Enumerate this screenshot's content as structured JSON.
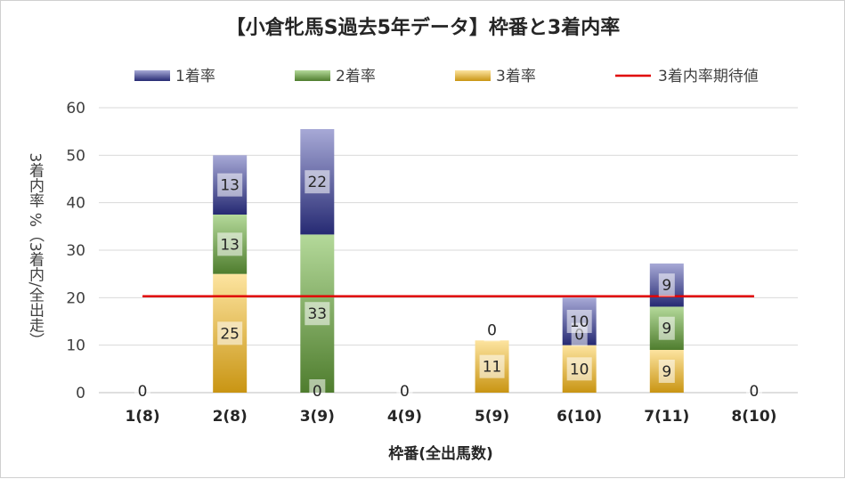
{
  "chart_data": {
    "type": "bar",
    "stacked": true,
    "title": "【小倉牝馬S過去5年データ】枠番と3着内率",
    "xlabel": "枠番(全出馬数)",
    "ylabel": "3着内率 %（3着内/全出走）",
    "ylim": [
      0,
      60
    ],
    "yticks": [
      0,
      10,
      20,
      30,
      40,
      50,
      60
    ],
    "grid": true,
    "legend_position": "top",
    "categories": [
      "1(8)",
      "2(8)",
      "3(9)",
      "4(9)",
      "5(9)",
      "6(10)",
      "7(11)",
      "8(10)"
    ],
    "series": [
      {
        "name": "3着率",
        "values": [
          0,
          25,
          0,
          0,
          11,
          10,
          9,
          0
        ],
        "color": "#d9a420"
      },
      {
        "name": "2着率",
        "values": [
          0,
          12.5,
          33.3,
          0,
          0,
          0,
          9.1,
          0
        ],
        "color": "#6e9e44"
      },
      {
        "name": "1着率",
        "values": [
          0,
          12.5,
          22.2,
          0,
          0,
          10,
          9.1,
          0
        ],
        "color": "#3a3f86"
      }
    ],
    "data_labels": [
      {
        "category": "1(8)",
        "series": "3着率",
        "text": "0"
      },
      {
        "category": "2(8)",
        "series": "3着率",
        "text": "25"
      },
      {
        "category": "2(8)",
        "series": "2着率",
        "text": "13"
      },
      {
        "category": "2(8)",
        "series": "1着率",
        "text": "13"
      },
      {
        "category": "3(9)",
        "series": "3着率",
        "text": "0"
      },
      {
        "category": "3(9)",
        "series": "2着率",
        "text": "33"
      },
      {
        "category": "3(9)",
        "series": "1着率",
        "text": "22"
      },
      {
        "category": "4(9)",
        "series": "3着率",
        "text": "0"
      },
      {
        "category": "5(9)",
        "series": "3着率",
        "text": "11"
      },
      {
        "category": "5(9)",
        "series": "2着率",
        "text": "0"
      },
      {
        "category": "6(10)",
        "series": "3着率",
        "text": "10"
      },
      {
        "category": "6(10)",
        "series": "2着率",
        "text": "0"
      },
      {
        "category": "6(10)",
        "series": "1着率",
        "text": "10"
      },
      {
        "category": "7(11)",
        "series": "3着率",
        "text": "9"
      },
      {
        "category": "7(11)",
        "series": "2着率",
        "text": "9"
      },
      {
        "category": "7(11)",
        "series": "1着率",
        "text": "9"
      },
      {
        "category": "8(10)",
        "series": "3着率",
        "text": "0"
      }
    ],
    "reference_line": {
      "name": "3着内率期待値",
      "value": 20.3,
      "color": "#e00000"
    },
    "legend": [
      {
        "name": "1着率",
        "color": "#3a3f86",
        "kind": "bar"
      },
      {
        "name": "2着率",
        "color": "#6e9e44",
        "kind": "bar"
      },
      {
        "name": "3着率",
        "color": "#d9a420",
        "kind": "bar"
      },
      {
        "name": "3着内率期待値",
        "color": "#e00000",
        "kind": "line"
      }
    ]
  }
}
